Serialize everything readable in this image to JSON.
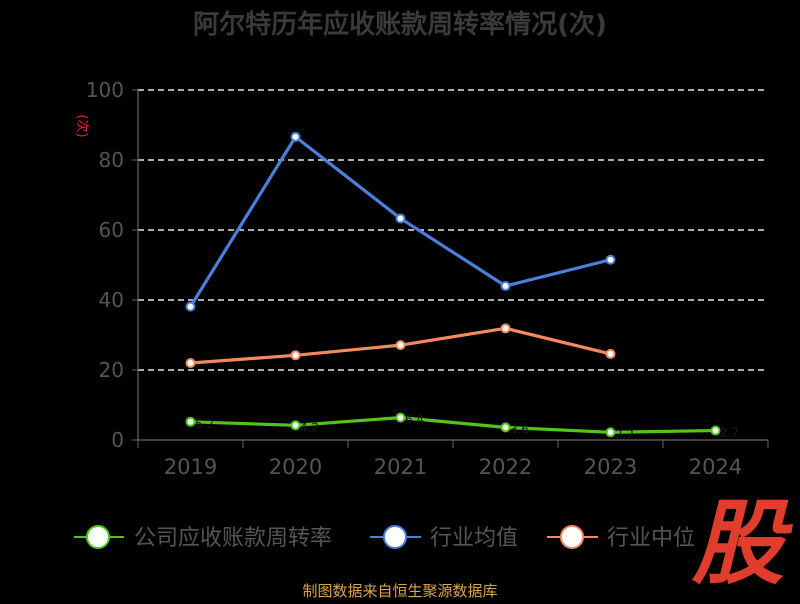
{
  "title": "阿尔特历年应收账款周转率情况(次)",
  "source": "制图数据来自恒生聚源数据库",
  "logo": "股",
  "chart_data": {
    "type": "line",
    "title": "阿尔特历年应收账款周转率情况(次)",
    "ylabel": "(次)",
    "xlabel": "",
    "categories": [
      "2019",
      "2020",
      "2021",
      "2022",
      "2023",
      "2024"
    ],
    "ylim": [
      0,
      100
    ],
    "yticks": [
      0,
      20,
      40,
      60,
      80,
      100
    ],
    "grid": true,
    "legend_position": "bottom",
    "series": [
      {
        "name": "公司应收账款周转率",
        "color": "#52c41a",
        "values": [
          5.2,
          4.2,
          6.4,
          3.6,
          2.2,
          2.7
        ]
      },
      {
        "name": "行业均值",
        "color": "#4a7fdc",
        "values": [
          38.1,
          86.6,
          63.3,
          44.0,
          51.5,
          null
        ]
      },
      {
        "name": "行业中位",
        "color": "#f4895f",
        "values": [
          22.0,
          24.2,
          27.1,
          31.9,
          24.6,
          null
        ]
      }
    ]
  }
}
